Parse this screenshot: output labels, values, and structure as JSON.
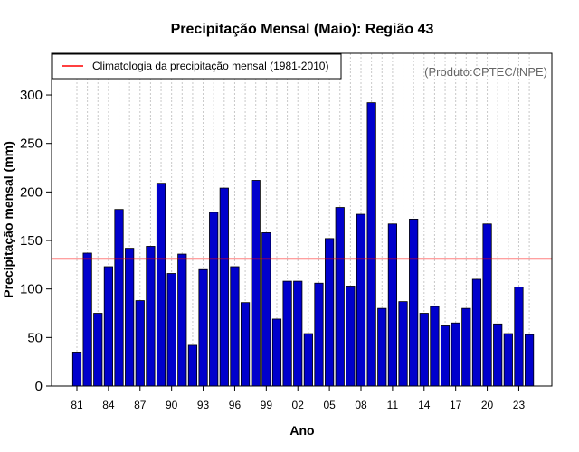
{
  "chart_data": {
    "type": "bar",
    "title": "Precipitação Mensal (Maio): Região 43",
    "xlabel": "Ano",
    "ylabel": "Precipitação mensal (mm)",
    "ylim": [
      0,
      340
    ],
    "yticks": [
      0,
      50,
      100,
      150,
      200,
      250,
      300
    ],
    "grid": "vertical-dotted",
    "categories": [
      "1981",
      "1982",
      "1983",
      "1984",
      "1985",
      "1986",
      "1987",
      "1988",
      "1989",
      "1990",
      "1991",
      "1992",
      "1993",
      "1994",
      "1995",
      "1996",
      "1997",
      "1998",
      "1999",
      "2000",
      "2001",
      "2002",
      "2003",
      "2004",
      "2005",
      "2006",
      "2007",
      "2008",
      "2009",
      "2010",
      "2011",
      "2012",
      "2013",
      "2014",
      "2015",
      "2016",
      "2017",
      "2018",
      "2019",
      "2020",
      "2021",
      "2022",
      "2023",
      "2024"
    ],
    "xtick_labels": [
      "81",
      "84",
      "87",
      "90",
      "93",
      "96",
      "99",
      "02",
      "05",
      "08",
      "11",
      "14",
      "17",
      "20",
      "23"
    ],
    "xtick_every": 3,
    "series": [
      {
        "name": "Precipitação mensal",
        "color": "#0000cc",
        "values": [
          35,
          137,
          75,
          123,
          182,
          142,
          88,
          144,
          209,
          116,
          136,
          42,
          120,
          179,
          204,
          123,
          86,
          212,
          158,
          69,
          108,
          108,
          54,
          106,
          152,
          184,
          103,
          177,
          292,
          80,
          167,
          87,
          172,
          75,
          82,
          62,
          65,
          80,
          110,
          167,
          64,
          54,
          102,
          53
        ]
      }
    ],
    "reference_line": {
      "label": "Climatologia da precipitação mensal (1981-2010)",
      "value": 131,
      "color": "#ff0000"
    },
    "legend_position": "top-left",
    "credit": "(Produto:CPTEC/INPE)"
  }
}
